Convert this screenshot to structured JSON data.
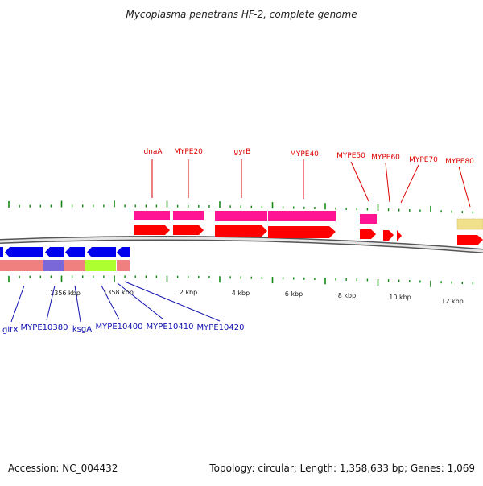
{
  "header": {
    "title": "Mycoplasma penetrans HF-2, complete genome"
  },
  "footer": {
    "accession": "Accession: NC_004432",
    "summary": "Topology: circular; Length: 1,358,633 bp; Genes: 1,069"
  },
  "colors": {
    "cds_forward": "#ff0000",
    "gene_forward": "#ff1493",
    "cds_reverse": "#0000ee",
    "gene_reverse": "#f08080",
    "tick": "#118811",
    "backbone": "#888888"
  },
  "axis": {
    "outer_tick_labels": [
      "2 kbp",
      "4 kbp",
      "6 kbp",
      "8 kbp",
      "10 kbp",
      "12 kbp"
    ],
    "inner_tick_labels": [
      "1356 kbp",
      "1358 kbp"
    ]
  },
  "labels": {
    "forward": [
      "dnaA",
      "MYPE20",
      "gyrB",
      "MYPE40",
      "MYPE50",
      "MYPE60",
      "MYPE70",
      "MYPE80"
    ],
    "reverse": [
      "gltX",
      "MYPE10380",
      "ksgA",
      "MYPE10400",
      "MYPE10410",
      "MYPE10420"
    ]
  }
}
